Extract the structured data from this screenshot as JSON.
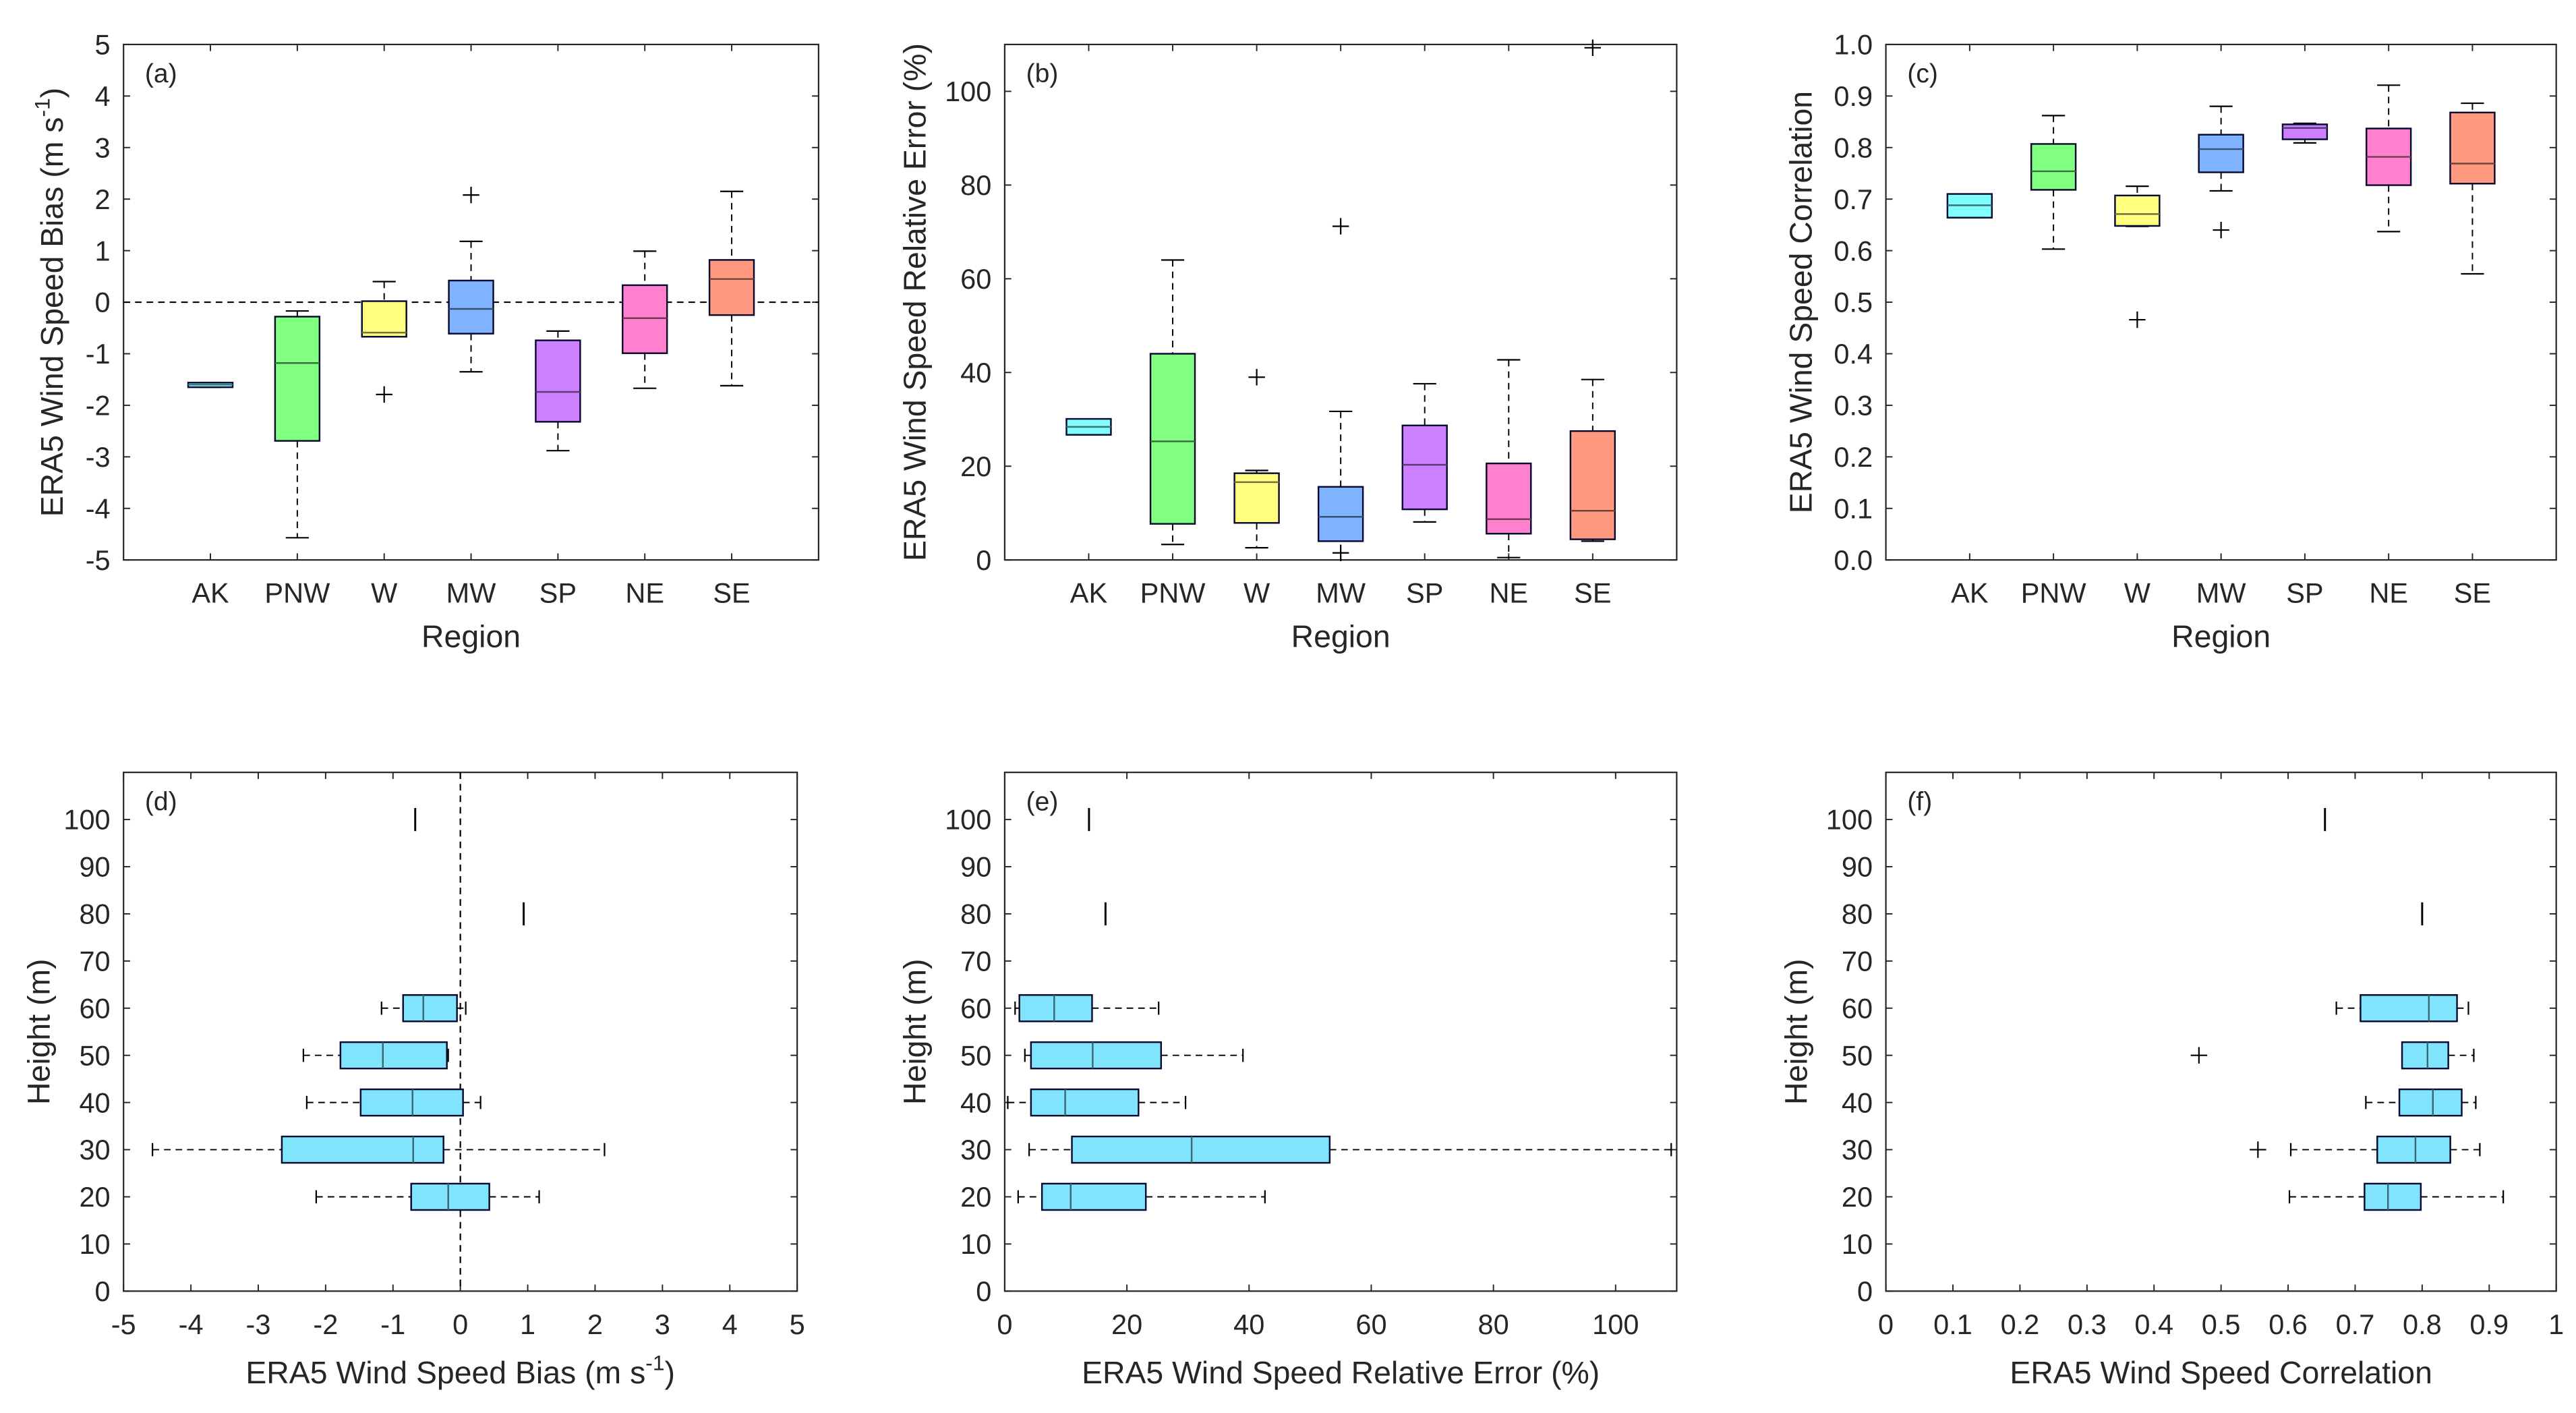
{
  "chart_data": [
    {
      "id": "a",
      "type": "box",
      "orientation": "vertical",
      "panel_label": "(a)",
      "xlabel": "Region",
      "ylabel": {
        "main": "ERA5 Wind Speed Bias (m s",
        "sup": "-1",
        "close": ")"
      },
      "ylim": [
        -5,
        5
      ],
      "yticks": [
        -5,
        -4,
        -3,
        -2,
        -1,
        0,
        1,
        2,
        3,
        4,
        5
      ],
      "zero_line": true,
      "categories": [
        "AK",
        "PNW",
        "W",
        "MW",
        "SP",
        "NE",
        "SE"
      ],
      "colors": [
        "#80ffff",
        "#80ff80",
        "#ffff80",
        "#80b3ff",
        "#cc80ff",
        "#ff80cc",
        "#ff9980"
      ],
      "boxes": [
        {
          "min": -1.65,
          "q1": -1.65,
          "med": -1.6,
          "q3": -1.56,
          "max": -1.56,
          "outliers": []
        },
        {
          "min": -4.57,
          "q1": -2.69,
          "med": -1.18,
          "q3": -0.28,
          "max": -0.17,
          "outliers": []
        },
        {
          "min": -0.67,
          "q1": -0.67,
          "med": -0.59,
          "q3": 0.02,
          "max": 0.4,
          "outliers": [
            -1.79
          ]
        },
        {
          "min": -1.35,
          "q1": -0.61,
          "med": -0.13,
          "q3": 0.42,
          "max": 1.18,
          "outliers": [
            2.08
          ]
        },
        {
          "min": -2.88,
          "q1": -2.32,
          "med": -1.74,
          "q3": -0.74,
          "max": -0.56,
          "outliers": []
        },
        {
          "min": -1.67,
          "q1": -0.99,
          "med": -0.31,
          "q3": 0.33,
          "max": 0.99,
          "outliers": []
        },
        {
          "min": -1.62,
          "q1": -0.25,
          "med": 0.45,
          "q3": 0.82,
          "max": 2.15,
          "outliers": []
        }
      ]
    },
    {
      "id": "b",
      "type": "box",
      "orientation": "vertical",
      "panel_label": "(b)",
      "xlabel": "Region",
      "ylabel": {
        "main": "ERA5 Wind Speed Relative Error (%)"
      },
      "ylim": [
        0,
        110
      ],
      "yticks": [
        0,
        20,
        40,
        60,
        80,
        100
      ],
      "zero_line": false,
      "categories": [
        "AK",
        "PNW",
        "W",
        "MW",
        "SP",
        "NE",
        "SE"
      ],
      "colors": [
        "#80ffff",
        "#80ff80",
        "#ffff80",
        "#80b3ff",
        "#cc80ff",
        "#ff80cc",
        "#ff9980"
      ],
      "boxes": [
        {
          "min": 26.7,
          "q1": 26.7,
          "med": 28.4,
          "q3": 30.1,
          "max": 30.1,
          "outliers": []
        },
        {
          "min": 3.3,
          "q1": 7.7,
          "med": 25.3,
          "q3": 44.0,
          "max": 64.0,
          "outliers": []
        },
        {
          "min": 2.6,
          "q1": 7.9,
          "med": 16.6,
          "q3": 18.5,
          "max": 19.1,
          "outliers": [
            39.0
          ]
        },
        {
          "min": 4.0,
          "q1": 4.0,
          "med": 9.2,
          "q3": 15.6,
          "max": 31.7,
          "outliers": [
            71.2,
            1.5
          ]
        },
        {
          "min": 8.1,
          "q1": 10.8,
          "med": 20.3,
          "q3": 28.7,
          "max": 37.6,
          "outliers": []
        },
        {
          "min": 0.5,
          "q1": 5.6,
          "med": 8.7,
          "q3": 20.6,
          "max": 42.7,
          "outliers": []
        },
        {
          "min": 4.0,
          "q1": 4.4,
          "med": 10.5,
          "q3": 27.5,
          "max": 38.5,
          "outliers": [
            109.3
          ]
        }
      ]
    },
    {
      "id": "c",
      "type": "box",
      "orientation": "vertical",
      "panel_label": "(c)",
      "xlabel": "Region",
      "ylabel": {
        "main": "ERA5 Wind Speed Correlation"
      },
      "ylim": [
        0,
        1
      ],
      "yticks": [
        0,
        0.1,
        0.2,
        0.3,
        0.4,
        0.5,
        0.6,
        0.7,
        0.8,
        0.9,
        1.0
      ],
      "ytick_labels": [
        "0.0",
        "0.1",
        "0.2",
        "0.3",
        "0.4",
        "0.5",
        "0.6",
        "0.7",
        "0.8",
        "0.9",
        "1.0"
      ],
      "zero_line": false,
      "categories": [
        "AK",
        "PNW",
        "W",
        "MW",
        "SP",
        "NE",
        "SE"
      ],
      "colors": [
        "#80ffff",
        "#80ff80",
        "#ffff80",
        "#80b3ff",
        "#cc80ff",
        "#ff80cc",
        "#ff9980"
      ],
      "boxes": [
        {
          "min": 0.664,
          "q1": 0.664,
          "med": 0.688,
          "q3": 0.71,
          "max": 0.71,
          "outliers": []
        },
        {
          "min": 0.603,
          "q1": 0.718,
          "med": 0.754,
          "q3": 0.807,
          "max": 0.862,
          "outliers": []
        },
        {
          "min": 0.647,
          "q1": 0.648,
          "med": 0.671,
          "q3": 0.707,
          "max": 0.725,
          "outliers": [
            0.466
          ]
        },
        {
          "min": 0.716,
          "q1": 0.752,
          "med": 0.797,
          "q3": 0.825,
          "max": 0.88,
          "outliers": [
            0.64
          ]
        },
        {
          "min": 0.809,
          "q1": 0.816,
          "med": 0.838,
          "q3": 0.845,
          "max": 0.847,
          "outliers": []
        },
        {
          "min": 0.637,
          "q1": 0.727,
          "med": 0.782,
          "q3": 0.837,
          "max": 0.921,
          "outliers": []
        },
        {
          "min": 0.555,
          "q1": 0.73,
          "med": 0.769,
          "q3": 0.868,
          "max": 0.886,
          "outliers": []
        }
      ]
    },
    {
      "id": "d",
      "type": "box",
      "orientation": "horizontal",
      "panel_label": "(d)",
      "xlabel": {
        "main": "ERA5 Wind Speed Bias (m s",
        "sup": "-1",
        "close": ")"
      },
      "ylabel": {
        "main": "Height (m)"
      },
      "xlim": [
        -5,
        5
      ],
      "xticks": [
        -5,
        -4,
        -3,
        -2,
        -1,
        0,
        1,
        2,
        3,
        4,
        5
      ],
      "ylim": [
        0,
        110
      ],
      "yticks": [
        0,
        10,
        20,
        30,
        40,
        50,
        60,
        70,
        80,
        90,
        100
      ],
      "zero_line": true,
      "color": "#80e5fc",
      "categories": [
        20,
        30,
        40,
        50,
        60,
        80,
        100
      ],
      "boxes": [
        {
          "min": -2.14,
          "q1": -0.73,
          "med": -0.18,
          "q3": 0.43,
          "max": 1.17,
          "outliers": []
        },
        {
          "min": -4.57,
          "q1": -2.65,
          "med": -0.7,
          "q3": -0.25,
          "max": 2.14,
          "outliers": []
        },
        {
          "min": -2.28,
          "q1": -1.48,
          "med": -0.71,
          "q3": 0.04,
          "max": 0.3,
          "outliers": []
        },
        {
          "min": -2.33,
          "q1": -1.78,
          "med": -1.15,
          "q3": -0.2,
          "max": -0.18,
          "outliers": []
        },
        {
          "min": -1.17,
          "q1": -0.85,
          "med": -0.55,
          "q3": -0.05,
          "max": 0.08,
          "outliers": []
        },
        {
          "min": 0.94,
          "q1": 0.94,
          "med": 0.94,
          "q3": 0.94,
          "max": 0.94,
          "outliers": []
        },
        {
          "min": -0.67,
          "q1": -0.67,
          "med": -0.67,
          "q3": -0.67,
          "max": -0.67,
          "outliers": []
        }
      ]
    },
    {
      "id": "e",
      "type": "box",
      "orientation": "horizontal",
      "panel_label": "(e)",
      "xlabel": {
        "main": "ERA5 Wind Speed Relative Error (%)"
      },
      "ylabel": {
        "main": "Height (m)"
      },
      "xlim": [
        0,
        110
      ],
      "xticks": [
        0,
        20,
        40,
        60,
        80,
        100
      ],
      "ylim": [
        0,
        110
      ],
      "yticks": [
        0,
        10,
        20,
        30,
        40,
        50,
        60,
        70,
        80,
        90,
        100
      ],
      "zero_line": false,
      "color": "#80e5fc",
      "categories": [
        20,
        30,
        40,
        50,
        60,
        80,
        100
      ],
      "boxes": [
        {
          "min": 2.2,
          "q1": 6.1,
          "med": 10.8,
          "q3": 23.1,
          "max": 42.6,
          "outliers": []
        },
        {
          "min": 4.0,
          "q1": 11.0,
          "med": 30.6,
          "q3": 53.2,
          "max": 109.1,
          "outliers": []
        },
        {
          "min": 0.5,
          "q1": 4.3,
          "med": 9.9,
          "q3": 21.9,
          "max": 29.6,
          "outliers": []
        },
        {
          "min": 3.3,
          "q1": 4.3,
          "med": 14.4,
          "q3": 25.6,
          "max": 39.0,
          "outliers": []
        },
        {
          "min": 1.7,
          "q1": 2.4,
          "med": 8.1,
          "q3": 14.3,
          "max": 25.2,
          "outliers": []
        },
        {
          "min": 16.5,
          "q1": 16.5,
          "med": 16.5,
          "q3": 16.5,
          "max": 16.5,
          "outliers": []
        },
        {
          "min": 13.8,
          "q1": 13.8,
          "med": 13.8,
          "q3": 13.8,
          "max": 13.8,
          "outliers": []
        }
      ]
    },
    {
      "id": "f",
      "type": "box",
      "orientation": "horizontal",
      "panel_label": "(f)",
      "xlabel": {
        "main": "ERA5 Wind Speed Correlation"
      },
      "ylabel": {
        "main": "Height (m)"
      },
      "xlim": [
        0,
        1
      ],
      "xticks": [
        0,
        0.1,
        0.2,
        0.3,
        0.4,
        0.5,
        0.6,
        0.7,
        0.8,
        0.9,
        1
      ],
      "ylim": [
        0,
        110
      ],
      "yticks": [
        0,
        10,
        20,
        30,
        40,
        50,
        60,
        70,
        80,
        90,
        100
      ],
      "zero_line": false,
      "color": "#80e5fc",
      "categories": [
        20,
        30,
        40,
        50,
        60,
        80,
        100
      ],
      "boxes": [
        {
          "min": 0.602,
          "q1": 0.714,
          "med": 0.749,
          "q3": 0.798,
          "max": 0.921,
          "outliers": []
        },
        {
          "min": 0.604,
          "q1": 0.733,
          "med": 0.79,
          "q3": 0.842,
          "max": 0.886,
          "outliers": [
            0.555
          ]
        },
        {
          "min": 0.716,
          "q1": 0.766,
          "med": 0.816,
          "q3": 0.859,
          "max": 0.88,
          "outliers": []
        },
        {
          "min": 0.77,
          "q1": 0.77,
          "med": 0.808,
          "q3": 0.839,
          "max": 0.877,
          "outliers": [
            0.467
          ]
        },
        {
          "min": 0.672,
          "q1": 0.708,
          "med": 0.81,
          "q3": 0.852,
          "max": 0.869,
          "outliers": []
        },
        {
          "min": 0.8,
          "q1": 0.8,
          "med": 0.8,
          "q3": 0.8,
          "max": 0.8,
          "outliers": []
        },
        {
          "min": 0.655,
          "q1": 0.655,
          "med": 0.655,
          "q3": 0.655,
          "max": 0.655,
          "outliers": []
        }
      ]
    }
  ]
}
